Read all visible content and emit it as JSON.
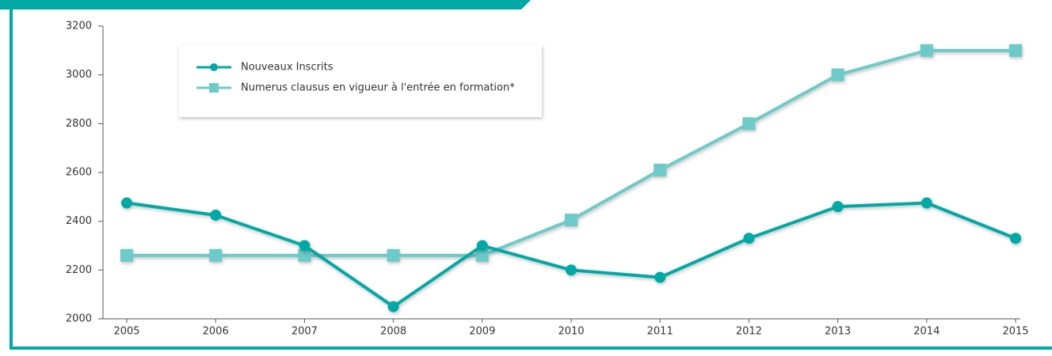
{
  "chart_data": {
    "type": "line",
    "categories": [
      "2005",
      "2006",
      "2007",
      "2008",
      "2009",
      "2010",
      "2011",
      "2012",
      "2013",
      "2014",
      "2015"
    ],
    "series": [
      {
        "name": "Nouveaux Inscrits",
        "color": "#00a9a5",
        "marker": "circle",
        "values": [
          2475,
          2425,
          2300,
          2050,
          2300,
          2200,
          2170,
          2330,
          2460,
          2475,
          2330
        ]
      },
      {
        "name": "Numerus clausus en vigueur à l'entrée en formation*",
        "color": "#6ccac8",
        "marker": "square",
        "values": [
          2260,
          2260,
          2260,
          2260,
          2260,
          2405,
          2610,
          2800,
          3000,
          3100,
          3100
        ]
      }
    ],
    "ylim": [
      2000,
      3200
    ],
    "yticks": [
      2000,
      2200,
      2400,
      2600,
      2800,
      3000,
      3200
    ],
    "grid": false
  }
}
